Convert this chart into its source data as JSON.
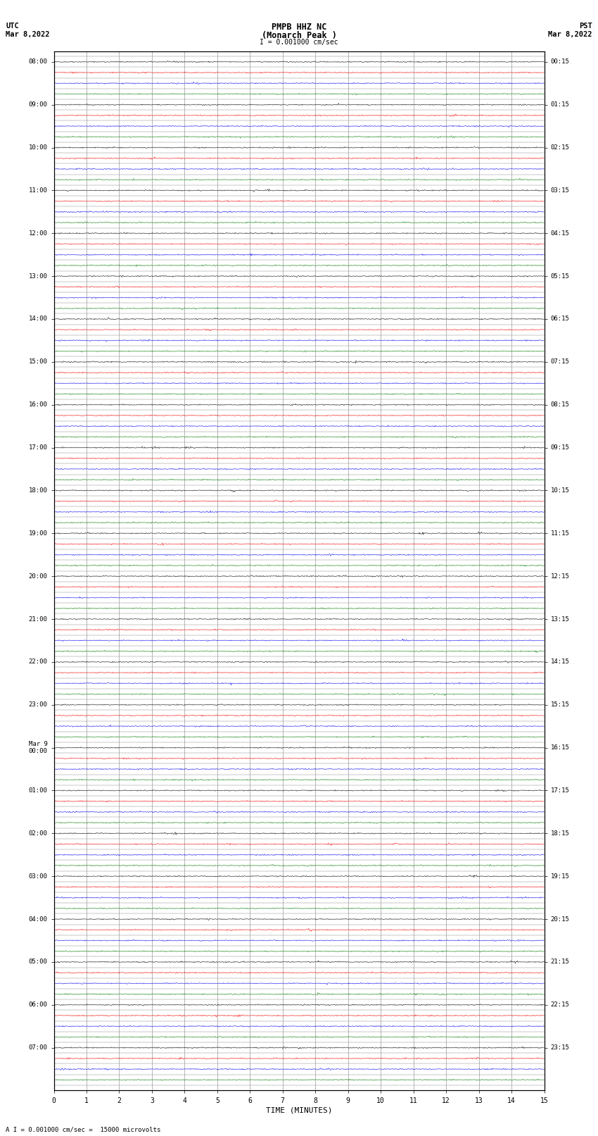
{
  "title_line1": "PMPB HHZ NC",
  "title_line2": "(Monarch Peak )",
  "scale_text": "I = 0.001000 cm/sec",
  "bottom_text": "A I = 0.001000 cm/sec =  15000 microvolts",
  "xlabel": "TIME (MINUTES)",
  "utc_label": "UTC",
  "utc_date": "Mar 8,2022",
  "pst_label": "PST",
  "pst_date": "Mar 8,2022",
  "xmin": 0,
  "xmax": 15,
  "xticks": [
    0,
    1,
    2,
    3,
    4,
    5,
    6,
    7,
    8,
    9,
    10,
    11,
    12,
    13,
    14,
    15
  ],
  "background_color": "#ffffff",
  "trace_colors": [
    "#000000",
    "#ff0000",
    "#0000ff",
    "#008000"
  ],
  "num_rows": 96,
  "noise_amplitude": 0.025,
  "noise_points": 900,
  "row_labels_utc": [
    "08:00",
    "",
    "",
    "",
    "09:00",
    "",
    "",
    "",
    "10:00",
    "",
    "",
    "",
    "11:00",
    "",
    "",
    "",
    "12:00",
    "",
    "",
    "",
    "13:00",
    "",
    "",
    "",
    "14:00",
    "",
    "",
    "",
    "15:00",
    "",
    "",
    "",
    "16:00",
    "",
    "",
    "",
    "17:00",
    "",
    "",
    "",
    "18:00",
    "",
    "",
    "",
    "19:00",
    "",
    "",
    "",
    "20:00",
    "",
    "",
    "",
    "21:00",
    "",
    "",
    "",
    "22:00",
    "",
    "",
    "",
    "23:00",
    "",
    "",
    "",
    "Mar 9\n00:00",
    "",
    "",
    "",
    "01:00",
    "",
    "",
    "",
    "02:00",
    "",
    "",
    "",
    "03:00",
    "",
    "",
    "",
    "04:00",
    "",
    "",
    "",
    "05:00",
    "",
    "",
    "",
    "06:00",
    "",
    "",
    "",
    "07:00",
    "",
    "",
    ""
  ],
  "row_labels_pst": [
    "00:15",
    "",
    "",
    "",
    "01:15",
    "",
    "",
    "",
    "02:15",
    "",
    "",
    "",
    "03:15",
    "",
    "",
    "",
    "04:15",
    "",
    "",
    "",
    "05:15",
    "",
    "",
    "",
    "06:15",
    "",
    "",
    "",
    "07:15",
    "",
    "",
    "",
    "08:15",
    "",
    "",
    "",
    "09:15",
    "",
    "",
    "",
    "10:15",
    "",
    "",
    "",
    "11:15",
    "",
    "",
    "",
    "12:15",
    "",
    "",
    "",
    "13:15",
    "",
    "",
    "",
    "14:15",
    "",
    "",
    "",
    "15:15",
    "",
    "",
    "",
    "16:15",
    "",
    "",
    "",
    "17:15",
    "",
    "",
    "",
    "18:15",
    "",
    "",
    "",
    "19:15",
    "",
    "",
    "",
    "20:15",
    "",
    "",
    "",
    "21:15",
    "",
    "",
    "",
    "22:15",
    "",
    "",
    "",
    "23:15",
    "",
    "",
    ""
  ]
}
